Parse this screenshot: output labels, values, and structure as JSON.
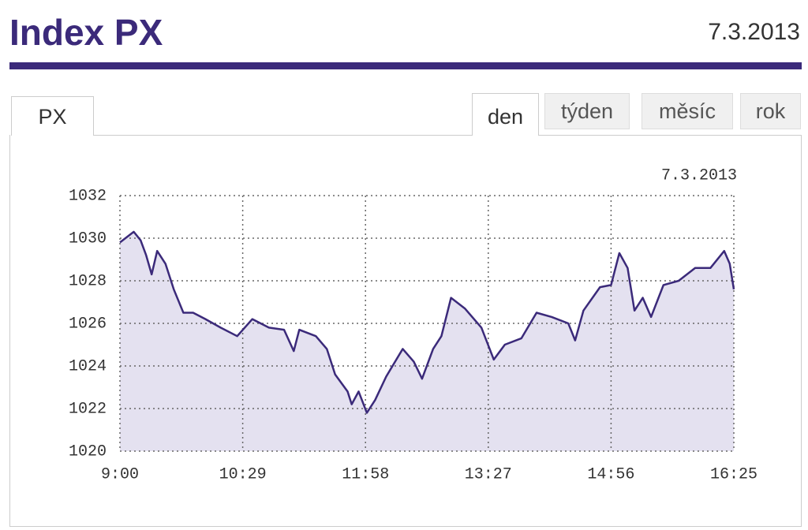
{
  "header": {
    "title": "Index PX",
    "date": "7.3.2013"
  },
  "tabs": {
    "index": "PX",
    "periods": [
      "den",
      "týden",
      "měsíc",
      "rok"
    ]
  },
  "chart_data": {
    "type": "line",
    "subtitle": "7.3.2013",
    "x": [
      "9:00",
      "9:10",
      "9:15",
      "9:19",
      "9:23",
      "9:27",
      "9:33",
      "9:39",
      "9:46",
      "9:53",
      "10:02",
      "10:13",
      "10:25",
      "10:36",
      "10:48",
      "10:59",
      "11:06",
      "11:10",
      "11:22",
      "11:30",
      "11:36",
      "11:45",
      "11:48",
      "11:53",
      "11:59",
      "12:05",
      "12:13",
      "12:25",
      "12:33",
      "12:39",
      "12:47",
      "12:53",
      "13:00",
      "13:10",
      "13:22",
      "13:31",
      "13:39",
      "13:51",
      "14:02",
      "14:13",
      "14:25",
      "14:30",
      "14:36",
      "14:48",
      "14:56",
      "15:02",
      "15:08",
      "15:13",
      "15:19",
      "15:25",
      "15:34",
      "15:45",
      "15:57",
      "16:08",
      "16:18",
      "16:22",
      "16:25"
    ],
    "values": [
      1029.8,
      1030.3,
      1029.9,
      1029.2,
      1028.3,
      1029.4,
      1028.8,
      1027.6,
      1026.5,
      1026.5,
      1026.2,
      1025.8,
      1025.4,
      1026.2,
      1025.8,
      1025.7,
      1024.7,
      1025.7,
      1025.4,
      1024.8,
      1023.6,
      1022.8,
      1022.2,
      1022.8,
      1021.8,
      1022.4,
      1023.5,
      1024.8,
      1024.2,
      1023.4,
      1024.8,
      1025.4,
      1027.2,
      1026.7,
      1025.8,
      1024.3,
      1025.0,
      1025.3,
      1026.5,
      1026.3,
      1026.0,
      1025.2,
      1026.6,
      1027.7,
      1027.8,
      1029.3,
      1028.6,
      1026.6,
      1027.2,
      1026.3,
      1027.8,
      1028.0,
      1028.6,
      1028.6,
      1029.4,
      1028.8,
      1027.6
    ],
    "xlim": [
      "9:00",
      "16:25"
    ],
    "xticks": [
      "9:00",
      "10:29",
      "11:58",
      "13:27",
      "14:56",
      "16:25"
    ],
    "ylim": [
      1020,
      1032
    ],
    "yticks": [
      1020,
      1022,
      1024,
      1026,
      1028,
      1030,
      1032
    ],
    "color": "#3b2a7a",
    "area_color": "#e4e1f0",
    "grid": true
  }
}
